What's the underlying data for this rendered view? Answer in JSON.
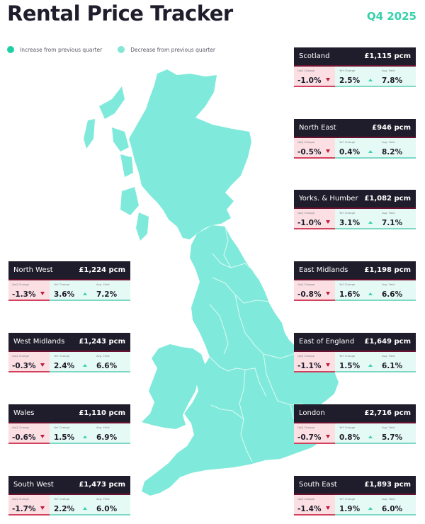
{
  "header": {
    "title": "Rental Price Tracker",
    "period": "Q4 2025"
  },
  "legend": {
    "items": [
      {
        "label": "Increase from previous quarter",
        "color": "#1fcfa4"
      },
      {
        "label": "Decrease from previous quarter",
        "color": "#84e6d3"
      }
    ]
  },
  "colors": {
    "map_fill": "#7feadb",
    "card_header": "#1f1d2b",
    "qoq_bg": "#fbdfe3",
    "qoq_border": "#d2415e",
    "down_arrow": "#c01b3c",
    "up_arrow": "#39d3ad",
    "rest_bg": "#e6faf5",
    "accent": "#34d1ab"
  },
  "stat_labels": {
    "qoq": "QoQ Change",
    "yoy": "YoY Change",
    "yield": "Avg. Yield"
  },
  "regions": [
    {
      "name": "Scotland",
      "price": "£1,115 pcm",
      "qoq": "-1.0%",
      "yoy": "2.5%",
      "yield": "7.8%"
    },
    {
      "name": "North East",
      "price": "£946 pcm",
      "qoq": "-0.5%",
      "yoy": "0.4%",
      "yield": "8.2%"
    },
    {
      "name": "Yorks. & Humber",
      "price": "£1,082 pcm",
      "qoq": "-1.0%",
      "yoy": "3.1%",
      "yield": "7.1%"
    },
    {
      "name": "East Midlands",
      "price": "£1,198 pcm",
      "qoq": "-0.8%",
      "yoy": "1.6%",
      "yield": "6.6%"
    },
    {
      "name": "East of England",
      "price": "£1,649 pcm",
      "qoq": "-1.1%",
      "yoy": "1.5%",
      "yield": "6.1%"
    },
    {
      "name": "London",
      "price": "£2,716 pcm",
      "qoq": "-0.7%",
      "yoy": "0.8%",
      "yield": "5.7%"
    },
    {
      "name": "South East",
      "price": "£1,893 pcm",
      "qoq": "-1.4%",
      "yoy": "1.9%",
      "yield": "6.0%"
    },
    {
      "name": "North West",
      "price": "£1,224 pcm",
      "qoq": "-1.3%",
      "yoy": "3.6%",
      "yield": "7.2%"
    },
    {
      "name": "West Midlands",
      "price": "£1,243 pcm",
      "qoq": "-0.3%",
      "yoy": "2.4%",
      "yield": "6.6%"
    },
    {
      "name": "Wales",
      "price": "£1,110 pcm",
      "qoq": "-0.6%",
      "yoy": "1.5%",
      "yield": "6.9%"
    },
    {
      "name": "South West",
      "price": "£1,473 pcm",
      "qoq": "-1.7%",
      "yoy": "2.2%",
      "yield": "6.0%"
    }
  ]
}
